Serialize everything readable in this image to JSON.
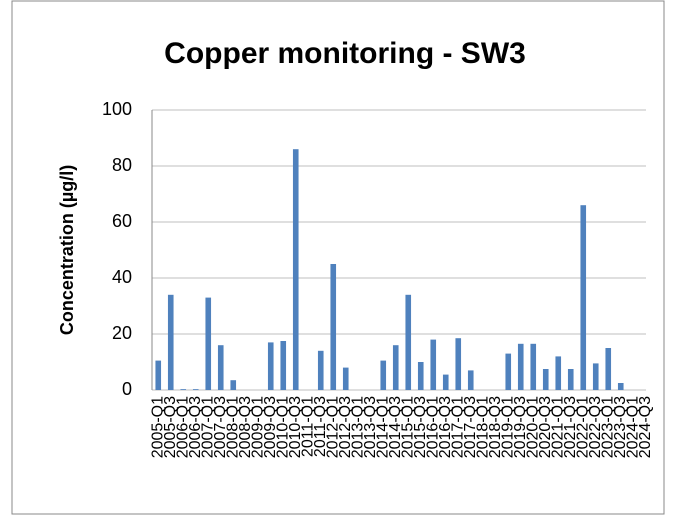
{
  "chart_data": {
    "type": "bar",
    "title": "Copper monitoring - SW3",
    "y_label": "Concentration (µg/l)",
    "categories": [
      "2005-Q1",
      "2005-Q3",
      "2006-Q1",
      "2006-Q3",
      "2007-Q1",
      "2007-Q3",
      "2008-Q1",
      "2008-Q3",
      "2009-Q1",
      "2009-Q3",
      "2010-Q1",
      "2010-Q3",
      "2011-Q1",
      "2011-Q3",
      "2012-Q1",
      "2012-Q3",
      "2013-Q1",
      "2013-Q3",
      "2014-Q1",
      "2014-Q3",
      "2015-Q1",
      "2015-Q3",
      "2016-Q1",
      "2016-Q3",
      "2017-Q1",
      "2017-Q3",
      "2018-Q1",
      "2018-Q3",
      "2019-Q1",
      "2019-Q3",
      "2020-Q1",
      "2020-Q3",
      "2021-Q1",
      "2021-Q3",
      "2022-Q1",
      "2022-Q3",
      "2023-Q1",
      "2023-Q3",
      "2024-Q1",
      "2024-Q3"
    ],
    "values": [
      10.5,
      34,
      0.3,
      0.3,
      33,
      16,
      3.5,
      null,
      null,
      17,
      17.5,
      86,
      null,
      14,
      45,
      8,
      null,
      null,
      10.5,
      16,
      34,
      10,
      18,
      5.5,
      18.5,
      7,
      null,
      null,
      13,
      16.5,
      16.5,
      7.5,
      12,
      7.5,
      66,
      9.5,
      15,
      2.5,
      null,
      null
    ],
    "color": "#4f81bd",
    "ylim": [
      0,
      100
    ],
    "yticks": [
      0,
      20,
      40,
      60,
      80,
      100
    ],
    "grid": true
  }
}
